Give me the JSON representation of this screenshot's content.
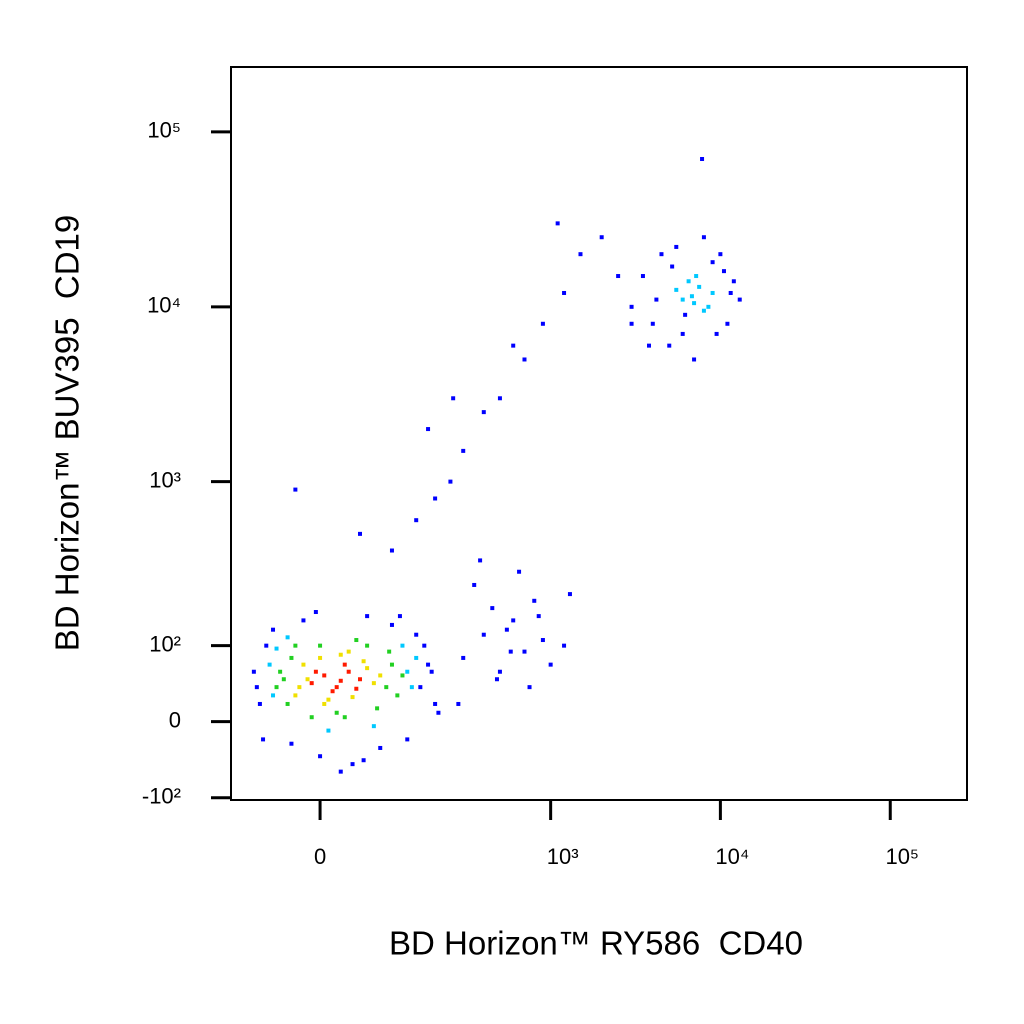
{
  "chart_data": {
    "type": "scatter",
    "x_label": "BD Horizon™ RY586  CD40",
    "y_label": "BD Horizon™ BUV395  CD19",
    "xscale": "asinh",
    "yscale": "asinh",
    "xlim": [
      -134,
      283000
    ],
    "ylim": [
      -104,
      235000
    ],
    "xticks": [
      0,
      {
        "value": 1000,
        "label": "10³"
      },
      {
        "value": 10000,
        "label": "10⁴"
      },
      {
        "value": 100000,
        "label": "10⁵"
      }
    ],
    "yticks": [
      {
        "value": -100,
        "label": "-10²"
      },
      0,
      {
        "value": 100,
        "label": "10²"
      },
      {
        "value": 1000,
        "label": "10³"
      },
      {
        "value": 10000,
        "label": "10⁴"
      },
      {
        "value": 100000,
        "label": "10⁵"
      }
    ],
    "series": [
      {
        "color": "#0000ff",
        "x": [
          -80,
          -90,
          -70,
          160,
          180,
          200,
          -75,
          -60,
          170,
          190,
          0,
          40,
          80,
          -20,
          60,
          100,
          130,
          -85,
          210,
          150,
          25,
          -35,
          115,
          -5,
          55,
          300,
          400,
          500,
          600,
          700,
          800,
          900,
          1000,
          350,
          450,
          550,
          650,
          750,
          850,
          1200,
          1300,
          280,
          380,
          480,
          580,
          100,
          150,
          200,
          250,
          300,
          400,
          500,
          700,
          900,
          1200,
          1500,
          2000,
          -30,
          50,
          180,
          260,
          600,
          1100,
          2500,
          3000,
          3500,
          4000,
          4500,
          5000,
          5500,
          6000,
          7000,
          8000,
          9000,
          10000,
          11000,
          12000,
          13000,
          4200,
          5200,
          6200,
          9500,
          10500,
          3800,
          11500,
          3000,
          7800
        ],
        "values": [
          20,
          60,
          100,
          40,
          70,
          20,
          -20,
          130,
          100,
          60,
          -40,
          -50,
          -30,
          150,
          160,
          140,
          -20,
          40,
          10,
          120,
          -60,
          -25,
          160,
          170,
          -45,
          80,
          120,
          60,
          150,
          90,
          200,
          110,
          70,
          250,
          180,
          130,
          300,
          40,
          160,
          100,
          220,
          20,
          350,
          50,
          90,
          400,
          600,
          800,
          1000,
          1500,
          2500,
          3000,
          5000,
          8000,
          12000,
          20000,
          25000,
          900,
          500,
          2000,
          3000,
          6000,
          30000,
          15000,
          8000,
          15000,
          8000,
          20000,
          6000,
          22000,
          7000,
          5000,
          25000,
          18000,
          20000,
          8000,
          14000,
          11000,
          11000,
          17000,
          9000,
          7000,
          16000,
          6000,
          12000,
          10000,
          70000
        ]
      },
      {
        "color": "#00c8ff",
        "x": [
          -60,
          -65,
          130,
          140,
          -55,
          150,
          10,
          70,
          -40,
          120,
          6000,
          7500,
          8000,
          9000,
          6500,
          7000,
          5500,
          8500,
          7200,
          6800
        ],
        "values": [
          30,
          70,
          60,
          40,
          95,
          80,
          -10,
          -5,
          115,
          100,
          11000,
          13000,
          9500,
          12000,
          14000,
          10500,
          12500,
          10000,
          15000,
          11500
        ]
      },
      {
        "color": "#22d022",
        "x": [
          -45,
          -40,
          -35,
          90,
          100,
          110,
          -50,
          0,
          20,
          60,
          75,
          -30,
          45,
          95,
          -10,
          30,
          120,
          -55
        ],
        "values": [
          50,
          20,
          80,
          40,
          70,
          30,
          60,
          100,
          10,
          100,
          15,
          100,
          110,
          90,
          5,
          5,
          55,
          40
        ]
      },
      {
        "color": "#f0e000",
        "x": [
          -30,
          -20,
          0,
          10,
          25,
          40,
          60,
          70,
          -15,
          55,
          5,
          35,
          80,
          -25
        ],
        "values": [
          30,
          70,
          80,
          25,
          85,
          28,
          65,
          45,
          50,
          75,
          20,
          90,
          55,
          40
        ]
      },
      {
        "color": "#ff1a00",
        "x": [
          -10,
          5,
          20,
          35,
          50,
          15,
          -5,
          30,
          45,
          25
        ],
        "values": [
          45,
          55,
          40,
          60,
          50,
          35,
          60,
          70,
          38,
          48
        ]
      }
    ]
  }
}
